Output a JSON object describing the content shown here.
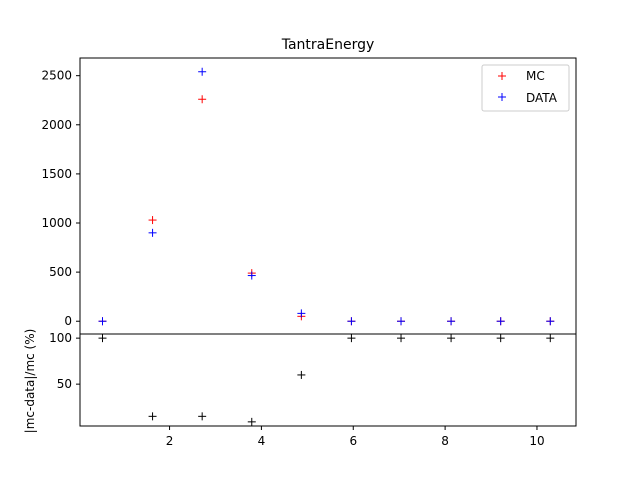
{
  "chart_data": [
    {
      "type": "scatter",
      "title": "TantraEnergy",
      "xlabel": "",
      "ylabel": "",
      "xlim": [
        0.05,
        10.85
      ],
      "ylim": [
        -130,
        2680
      ],
      "yticks": [
        0,
        500,
        1000,
        1500,
        2000,
        2500
      ],
      "grid": false,
      "legend": "top-right",
      "x": [
        0.54,
        1.63,
        2.71,
        3.79,
        4.87,
        5.96,
        7.04,
        8.13,
        9.21,
        10.29
      ],
      "series": [
        {
          "name": "MC",
          "marker": "+",
          "color": "#ff0000",
          "values": [
            0,
            1030,
            2260,
            490,
            50,
            0,
            0,
            0,
            0,
            0
          ]
        },
        {
          "name": "DATA",
          "marker": "+",
          "color": "#0000ff",
          "values": [
            0,
            900,
            2540,
            465,
            80,
            0,
            0,
            0,
            0,
            0
          ]
        }
      ]
    },
    {
      "type": "scatter",
      "title": "",
      "xlabel": "",
      "ylabel": "|mc-data|/mc (%)",
      "xlim": [
        0.05,
        10.85
      ],
      "ylim": [
        4.5,
        104.5
      ],
      "xticks": [
        2,
        4,
        6,
        8,
        10
      ],
      "yticks": [
        50,
        100
      ],
      "grid": false,
      "x": [
        0.54,
        1.63,
        2.71,
        3.79,
        4.87,
        5.96,
        7.04,
        8.13,
        9.21,
        10.29
      ],
      "series": [
        {
          "marker": "+",
          "color": "#000000",
          "values": [
            100,
            15,
            15,
            9,
            60,
            100,
            100,
            100,
            100,
            100
          ]
        }
      ]
    }
  ]
}
